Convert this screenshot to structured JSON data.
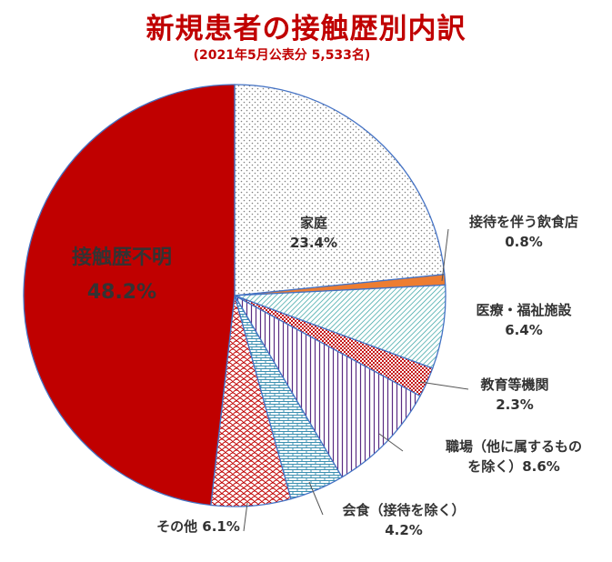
{
  "title": "新規患者の接触歴別内訳",
  "subtitle": "(2021年5月公表分 5,533名)",
  "chart_data": {
    "type": "pie",
    "title": "新規患者の接触歴別内訳",
    "subtitle": "(2021年5月公表分 5,533名)",
    "unit": "%",
    "total": 5533,
    "slices": [
      {
        "label": "家庭",
        "value_text": "23.4%",
        "value": 23.4,
        "color": "#ffffff",
        "pattern": "dots",
        "label_lines": [
          "家庭",
          "23.4%"
        ]
      },
      {
        "label": "接待を伴う飲食店",
        "value_text": "0.8%",
        "value": 0.8,
        "color": "#ed7d31",
        "pattern": "solid",
        "label_lines": [
          "接待を伴う飲食店",
          "0.8%"
        ]
      },
      {
        "label": "医療・福祉施設",
        "value_text": "6.4%",
        "value": 6.4,
        "color": "#2e9f9f",
        "pattern": "diagonal",
        "label_lines": [
          "医療・福祉施設",
          "6.4%"
        ]
      },
      {
        "label": "教育等機関",
        "value_text": "2.3%",
        "value": 2.3,
        "color": "#c00000",
        "pattern": "dense-dots",
        "label_lines": [
          "教育等機関",
          "2.3%"
        ]
      },
      {
        "label": "職場（他に属するものを除く）",
        "value_text": "8.6%",
        "value": 8.6,
        "color": "#5b2c83",
        "pattern": "vertical",
        "label_lines": [
          "職場（他に属するもの",
          "を除く）8.6%"
        ]
      },
      {
        "label": "会食（接待を除く）",
        "value_text": "4.2%",
        "value": 4.2,
        "color": "#3a8fb0",
        "pattern": "brick",
        "label_lines": [
          "会食（接待を除く）",
          "4.2%"
        ]
      },
      {
        "label": "その他",
        "value_text": "6.1%",
        "value": 6.1,
        "color": "#c00000",
        "pattern": "scales",
        "label_lines": [
          "その他 6.1%"
        ]
      },
      {
        "label": "接触歴不明",
        "value_text": "48.2%",
        "value": 48.2,
        "color": "#c00000",
        "pattern": "solid",
        "label_lines": [
          "接触歴不明",
          "48.2%"
        ]
      }
    ]
  }
}
